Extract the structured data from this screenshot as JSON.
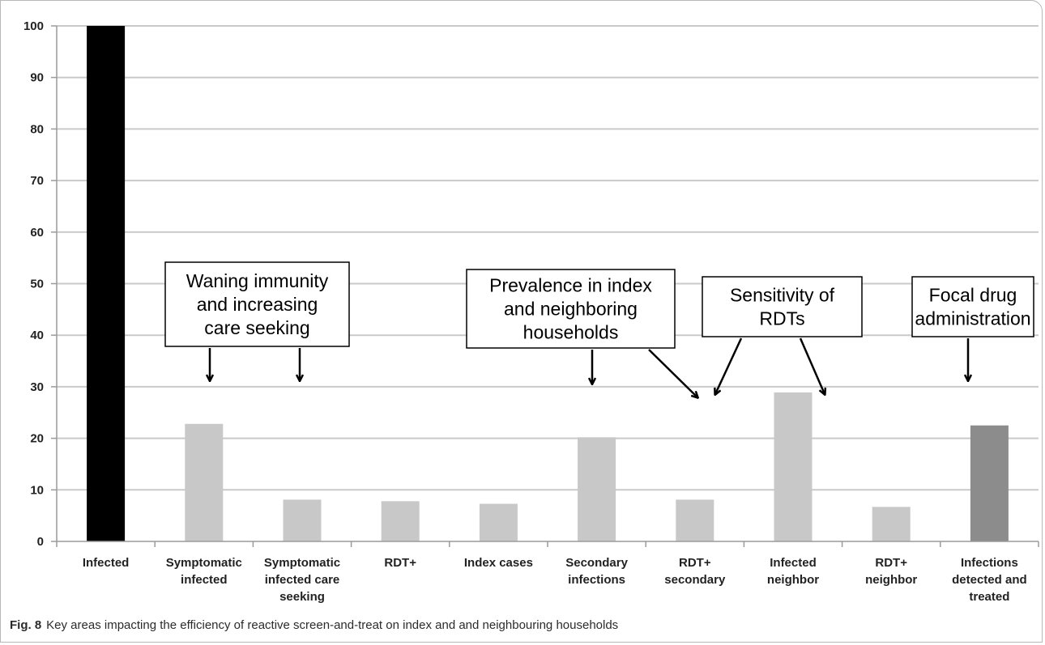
{
  "chart_data": {
    "type": "bar",
    "categories": [
      "Infected",
      "Symptomatic infected",
      "Symptomatic infected care seeking",
      "RDT+",
      "Index cases",
      "Secondary infections",
      "RDT+ secondary",
      "Infected neighbor",
      "RDT+ neighbor",
      "Infections detected and treated"
    ],
    "category_label_lines": [
      [
        "Infected"
      ],
      [
        "Symptomatic",
        "infected"
      ],
      [
        "Symptomatic",
        "infected care",
        "seeking"
      ],
      [
        "RDT+"
      ],
      [
        "Index cases"
      ],
      [
        "Secondary",
        "infections"
      ],
      [
        "RDT+",
        "secondary"
      ],
      [
        "Infected",
        "neighbor"
      ],
      [
        "RDT+",
        "neighbor"
      ],
      [
        "Infections",
        "detected and",
        "treated"
      ]
    ],
    "values": [
      100,
      22.8,
      8.1,
      7.8,
      7.3,
      20.2,
      8.1,
      28.9,
      6.7,
      22.5
    ],
    "bar_colors": [
      "#000000",
      "#c8c8c8",
      "#c8c8c8",
      "#c8c8c8",
      "#c8c8c8",
      "#c8c8c8",
      "#c8c8c8",
      "#c8c8c8",
      "#c8c8c8",
      "#8c8c8c"
    ],
    "ylim": [
      0,
      100
    ],
    "yticks": [
      0,
      10,
      20,
      30,
      40,
      50,
      60,
      70,
      80,
      90,
      100
    ],
    "grid": true,
    "title": "",
    "xlabel": "",
    "ylabel": "",
    "annotations": [
      {
        "lines": [
          "Waning immunity",
          "and increasing",
          "care seeking"
        ]
      },
      {
        "lines": [
          "Prevalence in index",
          "and neighboring",
          "households"
        ]
      },
      {
        "lines": [
          "Sensitivity of",
          "RDTs"
        ]
      },
      {
        "lines": [
          "Focal drug",
          "administration"
        ]
      }
    ]
  },
  "caption": {
    "label": "Fig. 8",
    "text": "Key areas impacting the efficiency of reactive screen-and-treat on index and and neighbouring households"
  }
}
